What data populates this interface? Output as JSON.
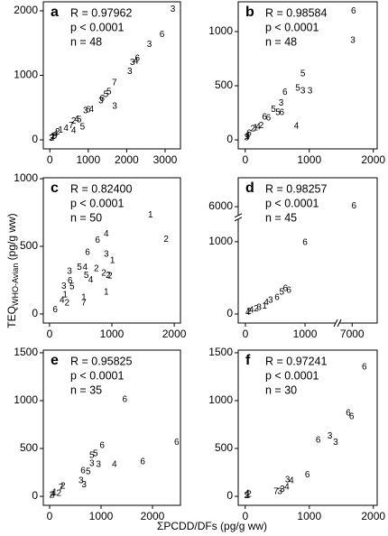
{
  "y_label": {
    "main": "TEQ",
    "sub": "WHO-Avian",
    "unit": " (pg/g ww)"
  },
  "x_label": "ΣPCDD/DFs (pg/g ww)",
  "chart_data": [
    {
      "type": "scatter",
      "panel": "a",
      "stats": [
        "R = 0.97962",
        "p < 0.0001",
        "n = 48"
      ],
      "color": "#000000",
      "xlim": [
        -170,
        3400
      ],
      "ylim": [
        -140,
        2140
      ],
      "xticks": [
        0,
        1000,
        2000,
        3000
      ],
      "yticks": [
        0,
        1000,
        2000
      ],
      "x": [
        3200,
        2920,
        2590,
        2280,
        2240,
        2150,
        2080,
        1680,
        1540,
        1460,
        1360,
        1330,
        1690,
        1080,
        1000,
        930,
        850,
        700,
        760,
        620,
        560,
        620,
        420,
        280,
        200,
        150,
        120,
        80,
        60,
        40
      ],
      "values": [
        2020,
        1630,
        1480,
        1260,
        1220,
        1200,
        1060,
        880,
        740,
        700,
        640,
        600,
        520,
        470,
        460,
        450,
        200,
        320,
        310,
        290,
        220,
        140,
        180,
        150,
        120,
        90,
        60,
        50,
        30,
        20
      ],
      "point_labels": [
        "3",
        "6",
        "3",
        "6",
        "4",
        "3",
        "3",
        "7",
        "5",
        "5",
        "6",
        "3",
        "3",
        "4",
        "6",
        "3",
        "5",
        "4",
        "5",
        "2",
        "7",
        "4",
        "4",
        "1",
        "2",
        "4",
        "3",
        "1",
        "2",
        "3"
      ]
    },
    {
      "type": "scatter",
      "panel": "b",
      "stats": [
        "R = 0.98584",
        "p < 0.0001",
        "n = 48"
      ],
      "color": "#000000",
      "xlim": [
        -110,
        2060
      ],
      "ylim": [
        -83,
        1275
      ],
      "xticks": [
        0,
        1000,
        2000
      ],
      "yticks": [
        0,
        500,
        1000
      ],
      "x": [
        1690,
        1680,
        900,
        820,
        900,
        1010,
        620,
        560,
        440,
        510,
        570,
        800,
        300,
        360,
        250,
        200,
        160,
        120,
        60,
        40,
        30,
        20
      ],
      "values": [
        1190,
        920,
        610,
        475,
        450,
        450,
        440,
        340,
        280,
        250,
        250,
        125,
        210,
        200,
        130,
        120,
        110,
        100,
        60,
        40,
        30,
        20
      ],
      "point_labels": [
        "6",
        "3",
        "5",
        "5",
        "3",
        "3",
        "6",
        "3",
        "5",
        "5",
        "6",
        "4",
        "6",
        "6",
        "2",
        "4",
        "1",
        "2",
        "6",
        "4",
        "1",
        "3"
      ]
    },
    {
      "type": "scatter",
      "panel": "c",
      "stats": [
        "R = 0.82400",
        "p < 0.0001",
        "n = 50"
      ],
      "color": "#000000",
      "xlim": [
        -100,
        2100
      ],
      "ylim": [
        -67,
        1007
      ],
      "xticks": [
        0,
        1000,
        2000
      ],
      "yticks": [
        0,
        500,
        1000
      ],
      "x": [
        1620,
        1870,
        910,
        770,
        610,
        910,
        1010,
        480,
        570,
        750,
        870,
        940,
        970,
        320,
        330,
        590,
        660,
        230,
        360,
        550,
        550,
        910,
        90,
        200,
        250,
        280
      ],
      "values": [
        730,
        550,
        590,
        545,
        455,
        440,
        395,
        345,
        345,
        335,
        300,
        285,
        280,
        315,
        245,
        285,
        250,
        205,
        200,
        120,
        80,
        160,
        30,
        100,
        140,
        80
      ],
      "point_labels": [
        "1",
        "2",
        "4",
        "6",
        "6",
        "3",
        "1",
        "5",
        "4",
        "2",
        "2",
        "2",
        "2",
        "3",
        "6",
        "5",
        "4",
        "3",
        "5",
        "1",
        "7",
        "1",
        "6",
        "4",
        "1",
        "2"
      ]
    },
    {
      "type": "scatter",
      "panel": "d",
      "stats": [
        "R = 0.98257",
        "p < 0.0001",
        "n = 45"
      ],
      "color": "#000000",
      "xlim": [
        -121,
        7420
      ],
      "ylim": [
        -125,
        6400
      ],
      "xbreak": [
        1500,
        6800
      ],
      "ybreak": [
        1300,
        5890
      ],
      "xticks": [
        0,
        1000,
        7000
      ],
      "yticks": [
        0,
        1000,
        6000
      ],
      "x": [
        7030,
        1000,
        670,
        730,
        610,
        530,
        420,
        350,
        320,
        230,
        180,
        100,
        60,
        40
      ],
      "values": [
        6010,
        990,
        350,
        325,
        300,
        225,
        190,
        160,
        110,
        90,
        70,
        50,
        30,
        20
      ],
      "point_labels": [
        "6",
        "6",
        "6",
        "6",
        "5",
        "6",
        "3",
        "4",
        "1",
        "3",
        "2",
        "4",
        "2",
        "4"
      ]
    },
    {
      "type": "scatter",
      "panel": "e",
      "stats": [
        "R = 0.95825",
        "p < 0.0001",
        "n = 35"
      ],
      "color": "#000000",
      "xlim": [
        -123,
        2544
      ],
      "ylim": [
        -94,
        1528
      ],
      "xticks": [
        0,
        1000,
        2000
      ],
      "yticks": [
        0,
        500,
        1000,
        1500
      ],
      "x": [
        1460,
        2470,
        1810,
        1020,
        890,
        820,
        820,
        950,
        1260,
        650,
        750,
        610,
        670,
        260,
        220,
        180,
        100,
        60,
        40
      ],
      "values": [
        1010,
        565,
        360,
        530,
        445,
        425,
        340,
        330,
        330,
        265,
        255,
        160,
        120,
        105,
        90,
        30,
        40,
        20,
        10
      ],
      "point_labels": [
        "6",
        "6",
        "6",
        "6",
        "5",
        "5",
        "3",
        "3",
        "4",
        "6",
        "5",
        "3",
        "3",
        "2",
        "7",
        "2",
        "1",
        "4",
        "2"
      ]
    },
    {
      "type": "scatter",
      "panel": "f",
      "stats": [
        "R = 0.97241",
        "p < 0.0001",
        "n = 30"
      ],
      "color": "#000000",
      "xlim": [
        -110,
        2060
      ],
      "ylim": [
        -94,
        1528
      ],
      "xticks": [
        0,
        1000,
        2000
      ],
      "yticks": [
        0,
        500,
        1000,
        1500
      ],
      "x": [
        1860,
        1610,
        1660,
        1140,
        1320,
        1410,
        970,
        660,
        720,
        650,
        580,
        480,
        540,
        60,
        40,
        30,
        20
      ],
      "values": [
        1350,
        870,
        830,
        585,
        630,
        565,
        225,
        170,
        160,
        95,
        70,
        50,
        50,
        20,
        10,
        30,
        5
      ],
      "point_labels": [
        "6",
        "6",
        "6",
        "6",
        "3",
        "3",
        "6",
        "3",
        "4",
        "4",
        "3",
        "7",
        "3",
        "2",
        "1",
        "4",
        "2"
      ]
    }
  ]
}
